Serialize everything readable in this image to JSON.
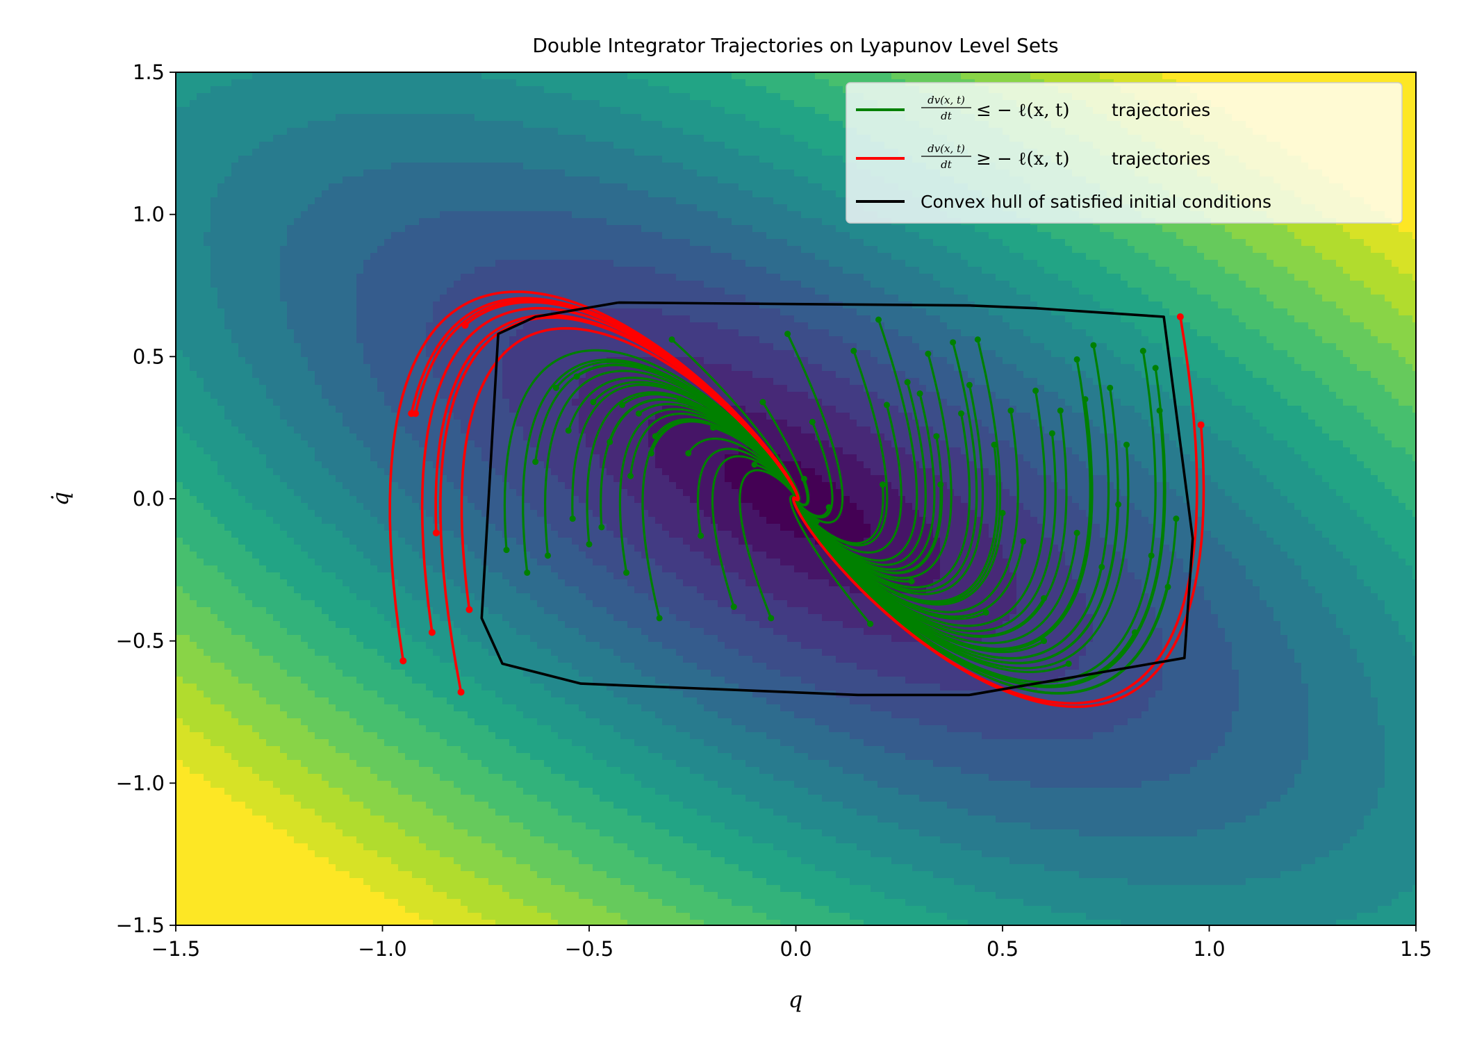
{
  "chart_data": {
    "type": "line",
    "title": "Double Integrator Trajectories on Lyapunov Level Sets",
    "xlabel": "q",
    "ylabel": "q̇",
    "xlim": [
      -1.5,
      1.5
    ],
    "ylim": [
      -1.5,
      1.5
    ],
    "xticks": [
      "−1.5",
      "−1.0",
      "−0.5",
      "0.0",
      "0.5",
      "1.0",
      "1.5"
    ],
    "yticks": [
      "−1.5",
      "−1.0",
      "−0.5",
      "0.0",
      "0.5",
      "1.0",
      "1.5"
    ],
    "grid": false,
    "legend_position": "upper-right",
    "colors": {
      "satisfied": "#008000",
      "violated": "#ff0000",
      "hull": "#000000"
    },
    "background": {
      "type": "filled-contour",
      "colormap": "viridis",
      "function": "quadratic V(q, q̇) = q² + 1.4·q·q̇ + 1.1·q̇² (level sets)"
    },
    "legend": [
      {
        "frac_num": "dv(x, t)",
        "frac_den": "dt",
        "relation": "≤ − ℓ(x, t)",
        "text": "trajectories",
        "color": "#008000"
      },
      {
        "frac_num": "dv(x, t)",
        "frac_den": "dt",
        "relation": "≥ − ℓ(x, t)",
        "text": "trajectories",
        "color": "#ff0000"
      },
      {
        "label": "Convex hull of satisfied initial conditions",
        "color": "#000000"
      }
    ],
    "series": [
      {
        "name": "Convex hull of satisfied initial conditions",
        "kind": "hull",
        "points": [
          [
            -0.43,
            0.69
          ],
          [
            0.42,
            0.68
          ],
          [
            0.58,
            0.67
          ],
          [
            0.89,
            0.64
          ],
          [
            0.96,
            -0.14
          ],
          [
            0.94,
            -0.56
          ],
          [
            0.42,
            -0.69
          ],
          [
            0.15,
            -0.69
          ],
          [
            -0.52,
            -0.65
          ],
          [
            -0.71,
            -0.58
          ],
          [
            -0.76,
            -0.42
          ],
          [
            -0.72,
            0.58
          ],
          [
            -0.63,
            0.64
          ],
          [
            -0.43,
            0.69
          ]
        ]
      },
      {
        "name": "dv(x, t)/dt ≥ − ℓ(x, t) trajectories",
        "kind": "violated",
        "initial_conditions": [
          [
            -0.95,
            -0.57
          ],
          [
            -0.93,
            0.3
          ],
          [
            -0.92,
            0.3
          ],
          [
            -0.88,
            -0.47
          ],
          [
            -0.87,
            -0.12
          ],
          [
            -0.81,
            -0.68
          ],
          [
            -0.8,
            0.61
          ],
          [
            -0.79,
            -0.39
          ],
          [
            0.93,
            0.64
          ],
          [
            0.98,
            0.26
          ]
        ]
      },
      {
        "name": "dv(x, t)/dt ≤ − ℓ(x, t) trajectories",
        "kind": "satisfied",
        "initial_conditions": [
          [
            -0.7,
            -0.18
          ],
          [
            -0.65,
            -0.26
          ],
          [
            -0.63,
            0.13
          ],
          [
            -0.6,
            -0.2
          ],
          [
            -0.55,
            0.24
          ],
          [
            -0.54,
            -0.07
          ],
          [
            -0.53,
            0.43
          ],
          [
            -0.5,
            -0.16
          ],
          [
            -0.49,
            0.34
          ],
          [
            -0.45,
            0.2
          ],
          [
            -0.42,
            0.33
          ],
          [
            -0.41,
            -0.26
          ],
          [
            -0.4,
            0.08
          ],
          [
            -0.38,
            0.3
          ],
          [
            -0.35,
            0.16
          ],
          [
            -0.34,
            0.22
          ],
          [
            -0.33,
            -0.42
          ],
          [
            -0.3,
            0.56
          ],
          [
            -0.28,
            0.35
          ],
          [
            -0.23,
            -0.13
          ],
          [
            -0.2,
            0.25
          ],
          [
            -0.15,
            -0.38
          ],
          [
            -0.08,
            0.34
          ],
          [
            -0.02,
            0.58
          ],
          [
            0.02,
            0.07
          ],
          [
            0.04,
            0.27
          ],
          [
            0.08,
            -0.03
          ],
          [
            0.14,
            0.52
          ],
          [
            0.18,
            -0.44
          ],
          [
            0.2,
            0.63
          ],
          [
            0.21,
            0.05
          ],
          [
            0.22,
            0.33
          ],
          [
            0.27,
            0.41
          ],
          [
            0.3,
            0.37
          ],
          [
            0.32,
            0.51
          ],
          [
            0.34,
            0.22
          ],
          [
            0.38,
            0.55
          ],
          [
            0.4,
            0.3
          ],
          [
            0.42,
            0.4
          ],
          [
            0.44,
            0.56
          ],
          [
            0.48,
            0.19
          ],
          [
            0.5,
            -0.05
          ],
          [
            0.52,
            0.31
          ],
          [
            0.55,
            -0.15
          ],
          [
            0.58,
            0.38
          ],
          [
            0.6,
            -0.35
          ],
          [
            0.62,
            0.23
          ],
          [
            0.64,
            0.31
          ],
          [
            0.66,
            -0.58
          ],
          [
            0.68,
            0.49
          ],
          [
            0.7,
            0.35
          ],
          [
            0.72,
            0.54
          ],
          [
            0.74,
            -0.24
          ],
          [
            0.76,
            0.39
          ],
          [
            0.78,
            -0.02
          ],
          [
            0.8,
            0.19
          ],
          [
            0.82,
            -0.47
          ],
          [
            0.84,
            0.52
          ],
          [
            0.86,
            -0.2
          ],
          [
            0.88,
            0.31
          ],
          [
            0.9,
            -0.31
          ],
          [
            0.92,
            -0.07
          ],
          [
            -0.06,
            -0.42
          ],
          [
            -0.26,
            0.16
          ],
          [
            -0.47,
            -0.1
          ],
          [
            -0.58,
            0.39
          ],
          [
            0.28,
            -0.29
          ],
          [
            0.46,
            -0.4
          ],
          [
            0.68,
            -0.12
          ],
          [
            0.87,
            0.46
          ],
          [
            0.35,
            0.05
          ],
          [
            -0.1,
            0.12
          ],
          [
            0.05,
            -0.08
          ],
          [
            0.6,
            -0.5
          ]
        ]
      }
    ]
  }
}
